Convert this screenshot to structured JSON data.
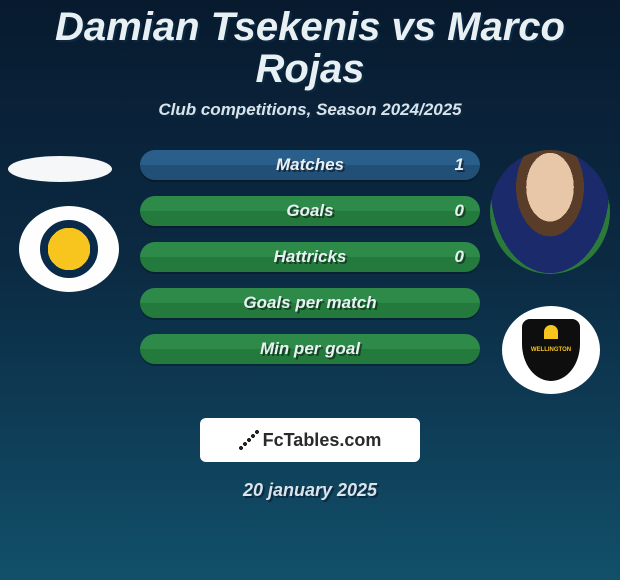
{
  "title": {
    "player1": "Damian Tsekenis",
    "vs": "vs",
    "player2": "Marco Rojas"
  },
  "subtitle": "Club competitions, Season 2024/2025",
  "colors": {
    "bg_gradient_start": "#071a2e",
    "bg_gradient_end": "#115069",
    "bar_blue": "#2a5f8c",
    "bar_green": "#2d8a49",
    "text": "#e9f0f4"
  },
  "stats": [
    {
      "label": "Matches",
      "value": "1",
      "style": "blue",
      "show_value": true
    },
    {
      "label": "Goals",
      "value": "0",
      "style": "green",
      "show_value": true
    },
    {
      "label": "Hattricks",
      "value": "0",
      "style": "green",
      "show_value": true
    },
    {
      "label": "Goals per match",
      "value": "",
      "style": "green",
      "show_value": false
    },
    {
      "label": "Min per goal",
      "value": "",
      "style": "green",
      "show_value": false
    }
  ],
  "left": {
    "club": "Central Coast Mariners"
  },
  "right": {
    "club": "Wellington Phoenix",
    "badge_text": "WELLINGTON"
  },
  "branding": "FcTables.com",
  "date": "20 january 2025"
}
